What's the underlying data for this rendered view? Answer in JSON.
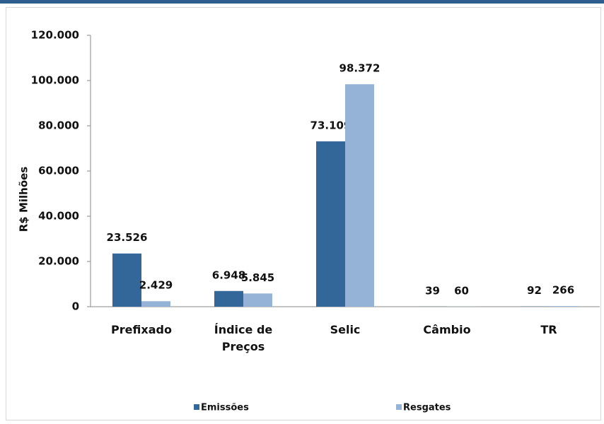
{
  "chart_data": {
    "type": "bar",
    "y_label": "R$ Milhões",
    "categories": [
      "Prefixado",
      "Índice de Preços",
      "Selic",
      "Câmbio",
      "TR"
    ],
    "series": [
      {
        "name": "Emissões",
        "color": "#336699",
        "values": [
          23526,
          6948,
          73109,
          39,
          92
        ],
        "value_labels": [
          "23.526",
          "6.948",
          "73.109",
          "39",
          "92"
        ]
      },
      {
        "name": "Resgates",
        "color": "#95b3d7",
        "values": [
          2429,
          5845,
          98372,
          60,
          266
        ],
        "value_labels": [
          "2.429",
          "5.845",
          "98.372",
          "60",
          "266"
        ]
      }
    ],
    "ylim": [
      0,
      120000
    ],
    "yticks": [
      0,
      {
        "value": 20000,
        "label": "20.000"
      },
      {
        "value": 40000,
        "label": "40.000"
      },
      {
        "value": 60000,
        "label": "60.000"
      },
      {
        "value": 80000,
        "label": "80.000"
      },
      {
        "value": 100000,
        "label": "100.000"
      },
      {
        "value": 120000,
        "label": "120.000"
      }
    ],
    "grid": false,
    "legend": "bottom"
  }
}
